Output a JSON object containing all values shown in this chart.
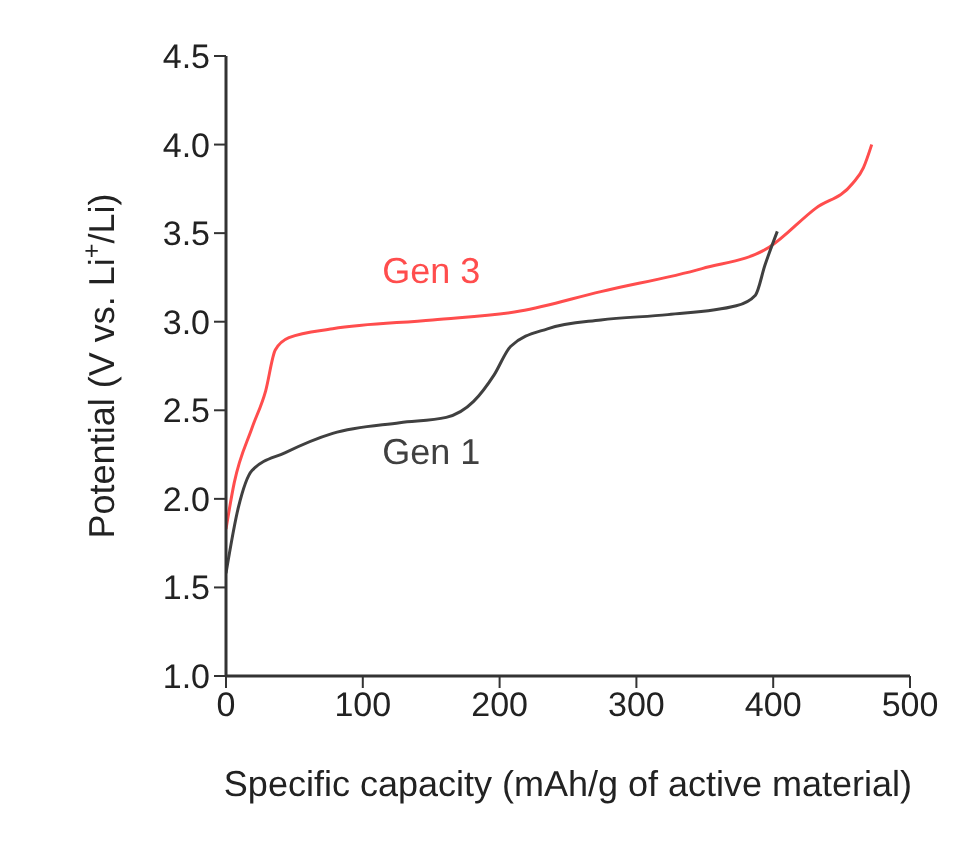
{
  "chart_data": {
    "type": "line",
    "xlabel": "Specific capacity (mAh/g of active material)",
    "ylabel": "Potential (V vs. Li$^{+}$/Li)",
    "xlim": [
      0,
      500
    ],
    "xticks": [
      0,
      100,
      200,
      300,
      400,
      500
    ],
    "ylim": [
      1,
      4.5
    ],
    "yticks": [
      {
        "value": 1,
        "label": "1.0"
      },
      {
        "value": 1.5,
        "label": "1.5"
      },
      {
        "value": 2,
        "label": "2.0"
      },
      {
        "value": 2.5,
        "label": "2.5"
      },
      {
        "value": 3,
        "label": "3.0"
      },
      {
        "value": 3.5,
        "label": "3.5"
      },
      {
        "value": 4,
        "label": "4.0"
      },
      {
        "value": 4.5,
        "label": "4.5"
      }
    ],
    "grid": false,
    "legend": false,
    "marker": "none",
    "line_style": "solid",
    "series": [
      {
        "name": "Gen 3",
        "color": "#ff4d4d",
        "x": [
          0,
          6,
          19,
          29,
          36,
          46,
          78,
          151,
          215,
          274,
          348,
          397,
          431,
          458,
          466,
          472
        ],
        "values": [
          1.83,
          2.09,
          2.4,
          2.61,
          2.84,
          2.91,
          2.96,
          3.01,
          3.06,
          3.17,
          3.3,
          3.42,
          3.64,
          3.78,
          3.87,
          4.0
        ]
      },
      {
        "name": "Gen 1",
        "color": "#404040",
        "x": [
          0,
          9,
          19,
          43,
          78,
          127,
          161,
          181,
          196,
          208,
          235,
          274,
          323,
          373,
          387,
          394,
          403
        ],
        "values": [
          1.58,
          1.95,
          2.16,
          2.26,
          2.37,
          2.43,
          2.46,
          2.55,
          2.7,
          2.86,
          2.96,
          3.01,
          3.04,
          3.09,
          3.15,
          3.32,
          3.51
        ]
      }
    ]
  }
}
